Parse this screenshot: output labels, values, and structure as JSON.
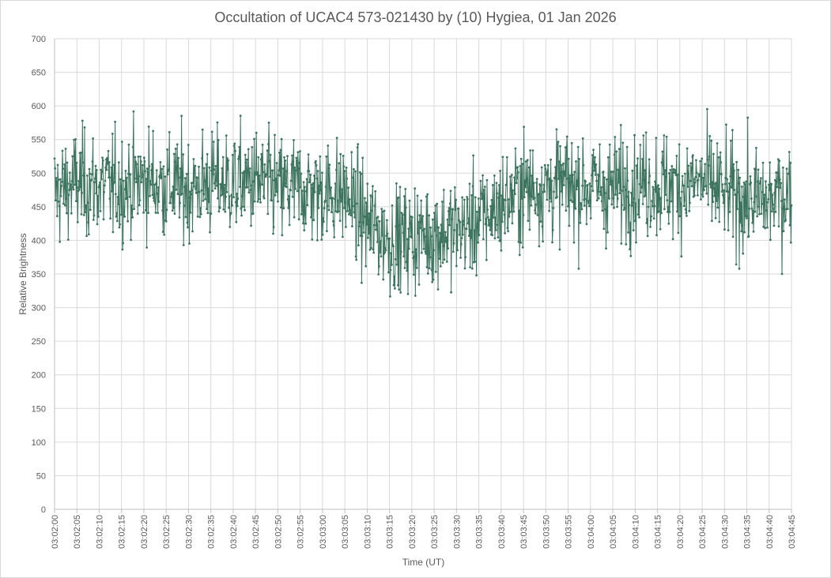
{
  "chart_data": {
    "type": "line",
    "title": "Occultation of UCAC4 573-021430 by (10) Hygiea, 01 Jan 2026",
    "xlabel": "Time (UT)",
    "ylabel": "Relative Brightness",
    "ylim": [
      0,
      700
    ],
    "y_ticks": [
      "0",
      "50",
      "100",
      "150",
      "200",
      "250",
      "300",
      "350",
      "400",
      "450",
      "500",
      "550",
      "600",
      "650",
      "700"
    ],
    "x_start": "03:02:00",
    "x_end": "03:04:45",
    "x_ticks": [
      "03:02:00",
      "03:02:05",
      "03:02:10",
      "03:02:15",
      "03:02:20",
      "03:02:25",
      "03:02:30",
      "03:02:35",
      "03:02:40",
      "03:02:45",
      "03:02:50",
      "03:02:55",
      "03:03:00",
      "03:03:05",
      "03:03:10",
      "03:03:15",
      "03:03:20",
      "03:03:25",
      "03:03:30",
      "03:03:35",
      "03:03:40",
      "03:03:45",
      "03:03:50",
      "03:03:55",
      "03:04:00",
      "03:04:05",
      "03:04:10",
      "03:04:15",
      "03:04:20",
      "03:04:25",
      "03:04:30",
      "03:04:35",
      "03:04:40",
      "03:04:45"
    ],
    "grid": true,
    "legend": "none",
    "series_color": "#3d7460",
    "series": [
      {
        "x": [
          "03:02:00",
          "03:02:05",
          "03:02:10",
          "03:02:15",
          "03:02:20",
          "03:02:25",
          "03:02:30",
          "03:02:35",
          "03:02:40",
          "03:02:45",
          "03:02:50",
          "03:02:55",
          "03:03:00",
          "03:03:05",
          "03:03:10",
          "03:03:15",
          "03:03:20",
          "03:03:25",
          "03:03:30",
          "03:03:35",
          "03:03:40",
          "03:03:45",
          "03:03:50",
          "03:03:55",
          "03:04:00",
          "03:04:05",
          "03:04:10",
          "03:04:15",
          "03:04:20",
          "03:04:25",
          "03:04:30",
          "03:04:35",
          "03:04:40",
          "03:04:45"
        ],
        "values": [
          470,
          485,
          480,
          478,
          490,
          482,
          476,
          486,
          484,
          488,
          476,
          478,
          472,
          470,
          425,
          400,
          405,
          410,
          415,
          430,
          452,
          478,
          480,
          482,
          480,
          478,
          484,
          482,
          480,
          488,
          470,
          460,
          458,
          475
        ]
      }
    ]
  }
}
